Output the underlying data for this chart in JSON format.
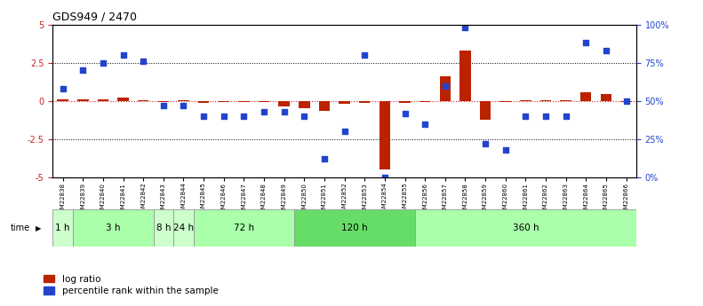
{
  "title": "GDS949 / 2470",
  "samples": [
    "GSM22838",
    "GSM22839",
    "GSM22840",
    "GSM22841",
    "GSM22842",
    "GSM22843",
    "GSM22844",
    "GSM22845",
    "GSM22846",
    "GSM22847",
    "GSM22848",
    "GSM22849",
    "GSM22850",
    "GSM22851",
    "GSM22852",
    "GSM22853",
    "GSM22854",
    "GSM22855",
    "GSM22856",
    "GSM22857",
    "GSM22858",
    "GSM22859",
    "GSM22860",
    "GSM22861",
    "GSM22862",
    "GSM22863",
    "GSM22864",
    "GSM22865",
    "GSM22866"
  ],
  "log_ratio": [
    0.1,
    0.08,
    0.08,
    0.22,
    0.05,
    -0.05,
    0.05,
    -0.12,
    -0.05,
    -0.08,
    -0.08,
    -0.35,
    -0.5,
    -0.65,
    -0.2,
    -0.12,
    -4.5,
    -0.12,
    -0.08,
    1.6,
    3.3,
    -1.2,
    -0.08,
    0.05,
    0.05,
    0.05,
    0.55,
    0.45,
    -0.08
  ],
  "percentile": [
    58,
    70,
    75,
    80,
    76,
    47,
    47,
    40,
    40,
    40,
    43,
    43,
    40,
    12,
    30,
    80,
    0,
    42,
    35,
    60,
    98,
    22,
    18,
    40,
    40,
    40,
    88,
    83,
    50
  ],
  "time_groups": [
    {
      "label": "1 h",
      "start": 0,
      "end": 1,
      "color": "#ccffcc"
    },
    {
      "label": "3 h",
      "start": 1,
      "end": 5,
      "color": "#aaffaa"
    },
    {
      "label": "8 h",
      "start": 5,
      "end": 6,
      "color": "#ccffcc"
    },
    {
      "label": "24 h",
      "start": 6,
      "end": 7,
      "color": "#ccffcc"
    },
    {
      "label": "72 h",
      "start": 7,
      "end": 12,
      "color": "#aaffaa"
    },
    {
      "label": "120 h",
      "start": 12,
      "end": 18,
      "color": "#66dd66"
    },
    {
      "label": "360 h",
      "start": 18,
      "end": 29,
      "color": "#aaffaa"
    }
  ],
  "ylim": [
    -5,
    5
  ],
  "y_ticks_left": [
    -5,
    -2.5,
    0,
    2.5,
    5
  ],
  "y_ticks_right_vals": [
    -5,
    -2.5,
    0,
    2.5,
    5
  ],
  "y_ticks_right_labels": [
    "0%",
    "25%",
    "50%",
    "75%",
    "100%"
  ],
  "dotted_lines": [
    -2.5,
    2.5
  ],
  "bar_color": "#bb2200",
  "dot_color": "#2244cc",
  "zero_line_color": "#cc2222",
  "background_color": "#ffffff"
}
